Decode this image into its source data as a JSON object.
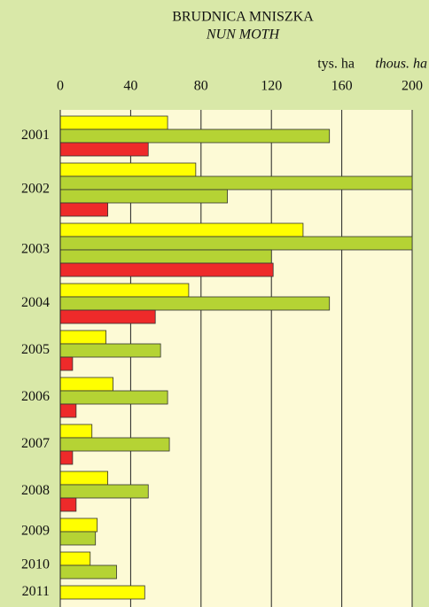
{
  "chart_data": {
    "type": "bar",
    "orientation": "horizontal",
    "title": "BRUDNICA MNISZKA",
    "subtitle": "NUN MOTH",
    "unit_label": "tys. ha",
    "unit_label_en": "thous. ha",
    "categories": [
      "2001",
      "2002",
      "2003",
      "2004",
      "2005",
      "2006",
      "2007",
      "2008",
      "2009",
      "2010",
      "2011"
    ],
    "series": [
      {
        "color": "#ffff00",
        "values": [
          61,
          77,
          138,
          73,
          26,
          30,
          18,
          27,
          21,
          17,
          48
        ]
      },
      {
        "color": "#b5d334",
        "values": [
          153,
          200,
          200,
          153,
          57,
          61,
          62,
          50,
          20,
          32,
          null
        ]
      },
      {
        "color": "#b5d334",
        "values": [
          null,
          95,
          120,
          null,
          null,
          null,
          null,
          null,
          null,
          null,
          null
        ]
      },
      {
        "color": "#ee2a2a",
        "values": [
          50,
          27,
          121,
          54,
          7,
          9,
          7,
          9,
          null,
          null,
          null
        ]
      }
    ],
    "xlim": [
      0,
      200
    ],
    "xticks": [
      0,
      40,
      80,
      120,
      160,
      200
    ],
    "grid": true
  }
}
